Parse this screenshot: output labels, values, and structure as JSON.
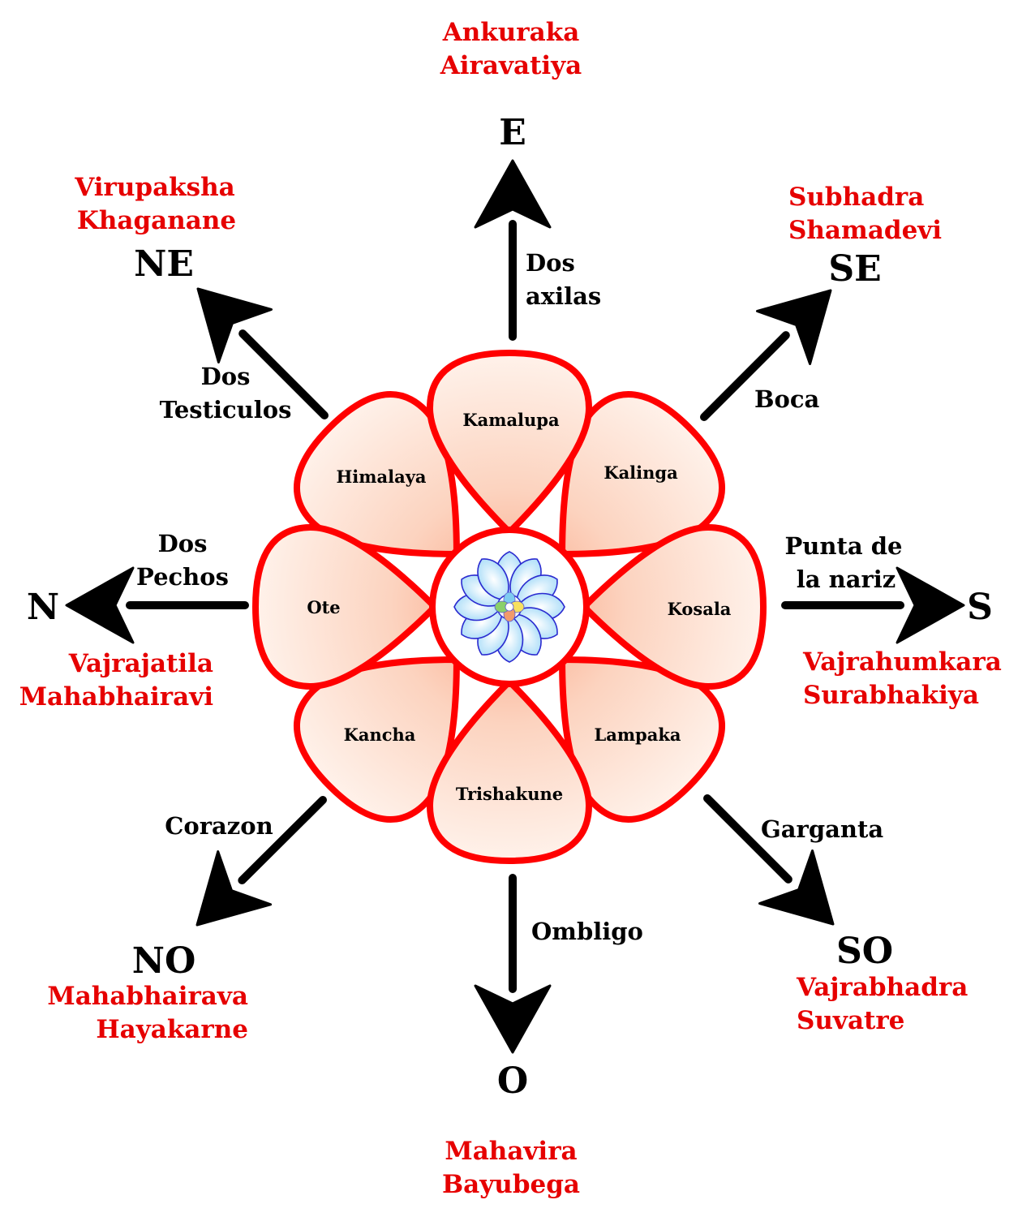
{
  "colors": {
    "accent_red": "#e60000",
    "petal_stroke": "#ff0000",
    "petal_fill_inner": "#fbb99a",
    "petal_fill_outer": "#fdeee6",
    "arrow": "#000000",
    "inner_lotus_fill": "#bfe6fb",
    "inner_lotus_stroke": "#2a2ad0"
  },
  "directions": {
    "E": {
      "label": "E",
      "part": [
        "Dos",
        "axilas"
      ],
      "deities": [
        "Ankuraka",
        "Airavatiya"
      ]
    },
    "SE": {
      "label": "SE",
      "part": [
        "Boca"
      ],
      "deities": [
        "Subhadra",
        "Shamadevi"
      ]
    },
    "S": {
      "label": "S",
      "part": [
        "Punta de",
        "la nariz"
      ],
      "deities": [
        "Vajrahumkara",
        "Surabhakiya"
      ]
    },
    "SO": {
      "label": "SO",
      "part": [
        "Garganta"
      ],
      "deities": [
        "Vajrabhadra",
        "Suvatre"
      ]
    },
    "O": {
      "label": "O",
      "part": [
        "Ombligo"
      ],
      "deities": [
        "Mahavira",
        "Bayubega"
      ]
    },
    "NO": {
      "label": "NO",
      "part": [
        "Corazon"
      ],
      "deities": [
        "Mahabhairava",
        "Hayakarne"
      ]
    },
    "N": {
      "label": "N",
      "part": [
        "Dos",
        "Pechos"
      ],
      "deities": [
        "Vajrajatila",
        "Mahabhairavi"
      ]
    },
    "NE": {
      "label": "NE",
      "part": [
        "Dos",
        "Testiculos"
      ],
      "deities": [
        "Virupaksha",
        "Khaganane"
      ]
    }
  },
  "petals": {
    "top": "Kamalupa",
    "top_right": "Kalinga",
    "right": "Kosala",
    "bottom_right": "Lampaka",
    "bottom": "Trishakune",
    "bottom_left": "Kancha",
    "left": "Ote",
    "top_left": "Himalaya"
  }
}
